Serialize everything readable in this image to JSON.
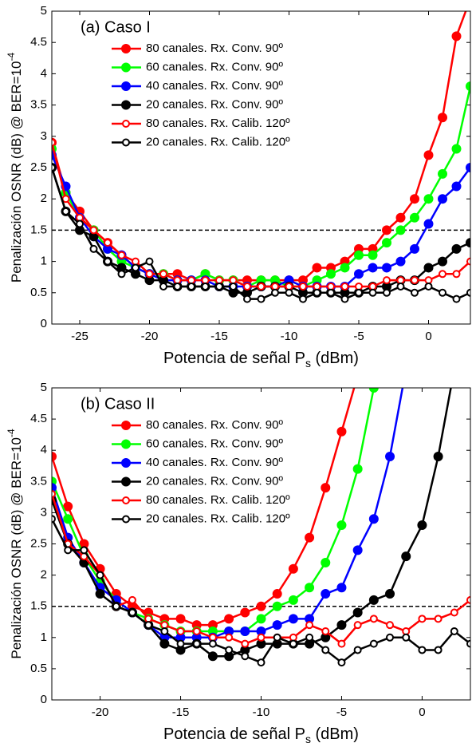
{
  "chart_data": [
    {
      "type": "line",
      "annotation": "(a) Caso I",
      "xlabel_parts": [
        "Potencia de señal P",
        "s",
        " (dBm)"
      ],
      "ylabel_parts": [
        "Penalización OSNR (dB) @ BER=10",
        "-4"
      ],
      "xlim": [
        -27,
        3
      ],
      "ylim": [
        0,
        5
      ],
      "xticks": [
        -25,
        -20,
        -15,
        -10,
        -5,
        0
      ],
      "yticks": [
        0,
        0.5,
        1,
        1.5,
        2,
        2.5,
        3,
        3.5,
        4,
        4.5,
        5
      ],
      "hline": 1.5,
      "series": [
        {
          "name": "80 canales. Rx. Conv. 90º",
          "color": "#ff0000",
          "marker": "filled",
          "x": [
            -27,
            -26,
            -25,
            -24,
            -23,
            -22,
            -21,
            -20,
            -19,
            -18,
            -17,
            -16,
            -15,
            -14,
            -13,
            -12,
            -11,
            -10,
            -9,
            -8,
            -7,
            -6,
            -5,
            -4,
            -3,
            -2,
            -1,
            0,
            1,
            2,
            3
          ],
          "values": [
            2.9,
            2.1,
            1.8,
            1.5,
            1.3,
            1.1,
            0.9,
            0.8,
            0.8,
            0.8,
            0.7,
            0.8,
            0.7,
            0.7,
            0.7,
            0.7,
            0.7,
            0.7,
            0.7,
            0.9,
            0.9,
            1.0,
            1.2,
            1.2,
            1.5,
            1.7,
            2.0,
            2.7,
            3.3,
            4.6,
            5.2
          ]
        },
        {
          "name": "60 canales. Rx. Conv. 90º",
          "color": "#00ff00",
          "marker": "filled",
          "x": [
            -27,
            -26,
            -25,
            -24,
            -23,
            -22,
            -21,
            -20,
            -19,
            -18,
            -17,
            -16,
            -15,
            -14,
            -13,
            -12,
            -11,
            -10,
            -9,
            -8,
            -7,
            -6,
            -5,
            -4,
            -3,
            -2,
            -1,
            0,
            1,
            2,
            3
          ],
          "values": [
            2.8,
            2.1,
            1.7,
            1.5,
            1.2,
            1.0,
            0.9,
            0.8,
            0.8,
            0.7,
            0.7,
            0.8,
            0.7,
            0.7,
            0.6,
            0.7,
            0.7,
            0.6,
            0.6,
            0.7,
            0.8,
            0.9,
            1.1,
            1.1,
            1.3,
            1.5,
            1.7,
            2.0,
            2.4,
            2.8,
            3.8
          ]
        },
        {
          "name": "40 canales. Rx. Conv. 90º",
          "color": "#0000ff",
          "marker": "filled",
          "x": [
            -27,
            -26,
            -25,
            -24,
            -23,
            -22,
            -21,
            -20,
            -19,
            -18,
            -17,
            -16,
            -15,
            -14,
            -13,
            -12,
            -11,
            -10,
            -9,
            -8,
            -7,
            -6,
            -5,
            -4,
            -3,
            -2,
            -1,
            0,
            1,
            2,
            3
          ],
          "values": [
            2.7,
            2.2,
            1.7,
            1.4,
            1.2,
            1.1,
            0.9,
            0.8,
            0.7,
            0.7,
            0.7,
            0.7,
            0.6,
            0.6,
            0.6,
            0.6,
            0.6,
            0.7,
            0.6,
            0.6,
            0.6,
            0.6,
            0.8,
            0.9,
            0.9,
            1.0,
            1.2,
            1.6,
            2.0,
            2.2,
            2.5
          ]
        },
        {
          "name": "20 canales. Rx. Conv. 90º",
          "color": "#000000",
          "marker": "filled",
          "x": [
            -27,
            -26,
            -25,
            -24,
            -23,
            -22,
            -21,
            -20,
            -19,
            -18,
            -17,
            -16,
            -15,
            -14,
            -13,
            -12,
            -11,
            -10,
            -9,
            -8,
            -7,
            -6,
            -5,
            -4,
            -3,
            -2,
            -1,
            0,
            1,
            2,
            3
          ],
          "values": [
            2.5,
            1.8,
            1.5,
            1.4,
            1.0,
            0.9,
            0.8,
            0.7,
            0.7,
            0.6,
            0.6,
            0.6,
            0.6,
            0.5,
            0.5,
            0.6,
            0.6,
            0.6,
            0.5,
            0.5,
            0.5,
            0.5,
            0.5,
            0.6,
            0.6,
            0.7,
            0.7,
            0.9,
            1.0,
            1.2,
            1.3
          ]
        },
        {
          "name": "80 canales. Rx. Calib. 120º",
          "color": "#ff0000",
          "marker": "open",
          "x": [
            -27,
            -26,
            -25,
            -24,
            -23,
            -22,
            -21,
            -20,
            -19,
            -18,
            -17,
            -16,
            -15,
            -14,
            -13,
            -12,
            -11,
            -10,
            -9,
            -8,
            -7,
            -6,
            -5,
            -4,
            -3,
            -2,
            -1,
            0,
            1,
            2,
            3
          ],
          "values": [
            2.9,
            2.0,
            1.7,
            1.5,
            1.3,
            1.1,
            1.0,
            0.8,
            0.8,
            0.7,
            0.7,
            0.7,
            0.7,
            0.7,
            0.6,
            0.6,
            0.6,
            0.6,
            0.6,
            0.6,
            0.6,
            0.6,
            0.6,
            0.6,
            0.7,
            0.7,
            0.7,
            0.7,
            0.8,
            0.8,
            1.0
          ]
        },
        {
          "name": "20 canales. Rx. Calib. 120º",
          "color": "#000000",
          "marker": "open",
          "x": [
            -27,
            -26,
            -25,
            -24,
            -23,
            -22,
            -21,
            -20,
            -19,
            -18,
            -17,
            -16,
            -15,
            -14,
            -13,
            -12,
            -11,
            -10,
            -9,
            -8,
            -7,
            -6,
            -5,
            -4,
            -3,
            -2,
            -1,
            0,
            1,
            2,
            3
          ],
          "values": [
            2.5,
            1.8,
            1.6,
            1.2,
            1.0,
            0.8,
            0.9,
            1.0,
            0.6,
            0.6,
            0.6,
            0.6,
            0.6,
            0.6,
            0.4,
            0.4,
            0.5,
            0.5,
            0.4,
            0.5,
            0.5,
            0.4,
            0.5,
            0.5,
            0.5,
            0.6,
            0.5,
            0.6,
            0.5,
            0.4,
            0.5
          ]
        }
      ]
    },
    {
      "type": "line",
      "annotation": "(b) Caso II",
      "xlabel_parts": [
        "Potencia de señal P",
        "s",
        " (dBm)"
      ],
      "ylabel_parts": [
        "Penalización OSNR (dB) @ BER=10",
        "-4"
      ],
      "xlim": [
        -23,
        3
      ],
      "ylim": [
        0,
        5
      ],
      "xticks": [
        -20,
        -15,
        -10,
        -5,
        0
      ],
      "yticks": [
        0,
        0.5,
        1,
        1.5,
        2,
        2.5,
        3,
        3.5,
        4,
        4.5,
        5
      ],
      "hline": 1.5,
      "series": [
        {
          "name": "80 canales. Rx. Conv. 90º",
          "color": "#ff0000",
          "marker": "filled",
          "x": [
            -23,
            -22,
            -21,
            -20,
            -19,
            -18,
            -17,
            -16,
            -15,
            -14,
            -13,
            -12,
            -11,
            -10,
            -9,
            -8,
            -7,
            -6,
            -5,
            -4
          ],
          "values": [
            3.9,
            3.1,
            2.5,
            2.1,
            1.7,
            1.5,
            1.4,
            1.3,
            1.3,
            1.2,
            1.2,
            1.3,
            1.4,
            1.5,
            1.7,
            2.1,
            2.6,
            3.4,
            4.3,
            5.2
          ]
        },
        {
          "name": "60 canales. Rx. Conv. 90º",
          "color": "#00ff00",
          "marker": "filled",
          "x": [
            -23,
            -22,
            -21,
            -20,
            -19,
            -18,
            -17,
            -16,
            -15,
            -14,
            -13,
            -12,
            -11,
            -10,
            -9,
            -8,
            -7,
            -6,
            -5,
            -4,
            -3
          ],
          "values": [
            3.5,
            2.9,
            2.3,
            1.9,
            1.6,
            1.4,
            1.3,
            1.2,
            1.1,
            1.1,
            1.1,
            1.1,
            1.1,
            1.3,
            1.5,
            1.6,
            1.8,
            2.2,
            2.8,
            3.7,
            5.0
          ]
        },
        {
          "name": "40 canales. Rx. Conv. 90º",
          "color": "#0000ff",
          "marker": "filled",
          "x": [
            -23,
            -22,
            -21,
            -20,
            -19,
            -18,
            -17,
            -16,
            -15,
            -14,
            -13,
            -12,
            -11,
            -10,
            -9,
            -8,
            -7,
            -6,
            -5,
            -4,
            -3,
            -2,
            -1
          ],
          "values": [
            3.4,
            2.6,
            2.2,
            1.8,
            1.6,
            1.4,
            1.2,
            1.0,
            1.0,
            1.0,
            1.0,
            1.1,
            1.1,
            1.1,
            1.2,
            1.3,
            1.3,
            1.7,
            1.8,
            2.4,
            2.9,
            3.9,
            5.3
          ]
        },
        {
          "name": "20 canales. Rx. Conv. 90º",
          "color": "#000000",
          "marker": "filled",
          "x": [
            -23,
            -22,
            -21,
            -20,
            -19,
            -18,
            -17,
            -16,
            -15,
            -14,
            -13,
            -12,
            -11,
            -10,
            -9,
            -8,
            -7,
            -6,
            -5,
            -4,
            -3,
            -2,
            -1,
            0,
            1,
            2
          ],
          "values": [
            3.2,
            2.5,
            2.2,
            1.7,
            1.5,
            1.4,
            1.2,
            0.9,
            0.8,
            0.9,
            0.7,
            0.7,
            0.8,
            0.9,
            0.9,
            0.9,
            0.9,
            1.0,
            1.2,
            1.4,
            1.6,
            1.7,
            2.3,
            2.8,
            3.9,
            5.3
          ]
        },
        {
          "name": "80 canales. Rx. Calib. 120º",
          "color": "#ff0000",
          "marker": "open",
          "x": [
            -23,
            -22,
            -21,
            -20,
            -19,
            -18,
            -17,
            -16,
            -15,
            -14,
            -13,
            -12,
            -11,
            -10,
            -9,
            -8,
            -7,
            -6,
            -5,
            -4,
            -3,
            -2,
            -1,
            0,
            1,
            2,
            3
          ],
          "values": [
            3.3,
            2.5,
            2.3,
            2.0,
            1.5,
            1.6,
            1.3,
            1.2,
            1.1,
            1.1,
            1.0,
            1.0,
            0.9,
            1.0,
            1.0,
            1.0,
            1.2,
            1.1,
            0.9,
            1.2,
            1.3,
            1.2,
            1.1,
            1.3,
            1.3,
            1.4,
            1.6
          ]
        },
        {
          "name": "20 canales. Rx. Calib. 120º",
          "color": "#000000",
          "marker": "open",
          "x": [
            -23,
            -22,
            -21,
            -20,
            -19,
            -18,
            -17,
            -16,
            -15,
            -14,
            -13,
            -12,
            -11,
            -10,
            -9,
            -8,
            -7,
            -6,
            -5,
            -4,
            -3,
            -2,
            -1,
            0,
            1,
            2,
            3
          ],
          "values": [
            2.9,
            2.4,
            2.4,
            2.0,
            1.5,
            1.4,
            1.2,
            1.1,
            0.9,
            0.9,
            0.9,
            0.8,
            0.7,
            0.6,
            1.0,
            0.9,
            1.0,
            0.8,
            0.6,
            0.8,
            0.9,
            1.0,
            1.0,
            0.8,
            0.8,
            1.1,
            0.9
          ]
        }
      ]
    }
  ]
}
